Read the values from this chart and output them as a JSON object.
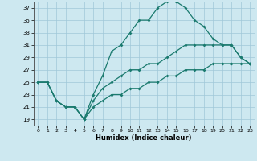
{
  "title": "",
  "xlabel": "Humidex (Indice chaleur)",
  "bg_color": "#cde8f0",
  "grid_color": "#a0c8d8",
  "line_color": "#1a7a6e",
  "xlim": [
    -0.5,
    23.5
  ],
  "ylim": [
    18,
    38
  ],
  "yticks": [
    19,
    21,
    23,
    25,
    27,
    29,
    31,
    33,
    35,
    37
  ],
  "xticks": [
    0,
    1,
    2,
    3,
    4,
    5,
    6,
    7,
    8,
    9,
    10,
    11,
    12,
    13,
    14,
    15,
    16,
    17,
    18,
    19,
    20,
    21,
    22,
    23
  ],
  "line1_x": [
    0,
    1,
    2,
    3,
    4,
    5,
    6,
    7,
    8,
    9,
    10,
    11,
    12,
    13,
    14,
    15,
    16,
    17,
    18,
    19,
    20,
    21,
    22,
    23
  ],
  "line1_y": [
    25,
    25,
    22,
    21,
    21,
    19,
    23,
    26,
    30,
    31,
    33,
    35,
    35,
    37,
    38,
    38,
    37,
    35,
    34,
    32,
    31,
    31,
    29,
    28
  ],
  "line2_x": [
    0,
    1,
    2,
    3,
    4,
    5,
    6,
    7,
    8,
    9,
    10,
    11,
    12,
    13,
    14,
    15,
    16,
    17,
    18,
    19,
    20,
    21,
    22,
    23
  ],
  "line2_y": [
    25,
    25,
    22,
    21,
    21,
    19,
    22,
    24,
    25,
    26,
    27,
    27,
    28,
    28,
    29,
    30,
    31,
    31,
    31,
    31,
    31,
    31,
    29,
    28
  ],
  "line3_x": [
    0,
    1,
    2,
    3,
    4,
    5,
    6,
    7,
    8,
    9,
    10,
    11,
    12,
    13,
    14,
    15,
    16,
    17,
    18,
    19,
    20,
    21,
    22,
    23
  ],
  "line3_y": [
    25,
    25,
    22,
    21,
    21,
    19,
    21,
    22,
    23,
    23,
    24,
    24,
    25,
    25,
    26,
    26,
    27,
    27,
    27,
    28,
    28,
    28,
    28,
    28
  ]
}
